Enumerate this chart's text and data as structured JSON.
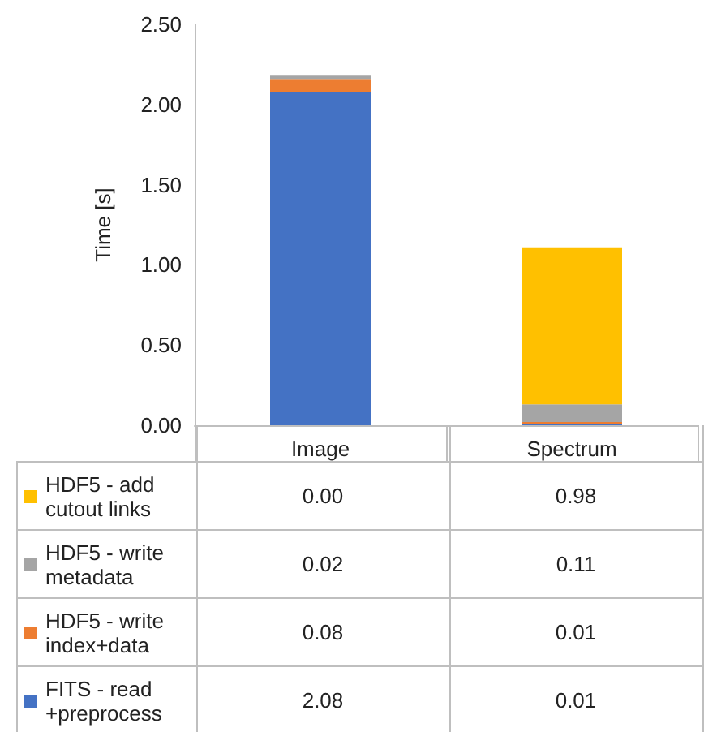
{
  "chart_data": {
    "type": "bar",
    "stacked": true,
    "ylabel": "Time [s]",
    "categories": [
      "Image",
      "Spectrum"
    ],
    "series": [
      {
        "name": "FITS - read +preprocess",
        "color": "#4472c4",
        "values": [
          2.08,
          0.01
        ],
        "value_labels": [
          "2.08",
          "0.01"
        ]
      },
      {
        "name": "HDF5 - write index+data",
        "color": "#ed7d31",
        "values": [
          0.08,
          0.01
        ],
        "value_labels": [
          "0.08",
          "0.01"
        ]
      },
      {
        "name": "HDF5 - write metadata",
        "color": "#a5a5a5",
        "values": [
          0.02,
          0.11
        ],
        "value_labels": [
          "0.02",
          "0.11"
        ]
      },
      {
        "name": "HDF5 - add cutout links",
        "color": "#ffc000",
        "values": [
          0.0,
          0.98
        ],
        "value_labels": [
          "0.00",
          "0.98"
        ]
      }
    ],
    "ylim": [
      0,
      2.5
    ],
    "yticks": [
      {
        "value": 0,
        "label": "0.00"
      },
      {
        "value": 0.5,
        "label": "0.50"
      },
      {
        "value": 1,
        "label": "1.00"
      },
      {
        "value": 1.5,
        "label": "1.50"
      },
      {
        "value": 2,
        "label": "2.00"
      },
      {
        "value": 2.5,
        "label": "2.50"
      }
    ],
    "grid": false,
    "legend": "bottom left"
  }
}
